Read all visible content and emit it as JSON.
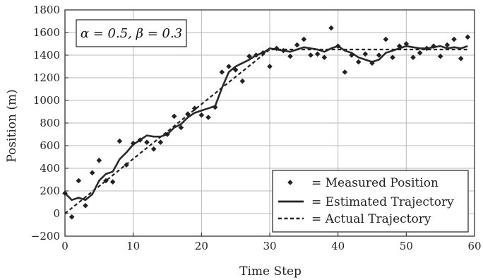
{
  "chart_data": {
    "type": "scatter",
    "title": "",
    "xlabel": "Time Step",
    "ylabel": "Position (m)",
    "xlim": [
      0,
      60
    ],
    "ylim": [
      -200,
      1800
    ],
    "xticks": [
      0,
      10,
      20,
      30,
      40,
      50,
      60
    ],
    "yticks": [
      -200,
      0,
      200,
      400,
      600,
      800,
      1000,
      1200,
      1400,
      1600,
      1800
    ],
    "xtick_labels": [
      "0",
      "10",
      "20",
      "30",
      "40",
      "50",
      "60"
    ],
    "ytick_labels": [
      "−200",
      "0",
      "200",
      "400",
      "600",
      "800",
      "1000",
      "1200",
      "1400",
      "1600",
      "1800"
    ],
    "grid": true,
    "legend_position": "bottom-right",
    "annotation": "α = 0.5, β = 0.3",
    "series": [
      {
        "name": "= Measured Position",
        "style": "markers",
        "marker": "diamond",
        "x": [
          0,
          1,
          2,
          3,
          4,
          5,
          6,
          7,
          8,
          9,
          10,
          11,
          12,
          13,
          14,
          15,
          16,
          17,
          18,
          19,
          20,
          21,
          22,
          23,
          24,
          25,
          26,
          27,
          28,
          29,
          30,
          31,
          32,
          33,
          34,
          35,
          36,
          37,
          38,
          39,
          40,
          41,
          42,
          43,
          44,
          45,
          46,
          47,
          48,
          49,
          50,
          51,
          52,
          53,
          54,
          55,
          56,
          57,
          58,
          59
        ],
        "y": [
          180,
          -30,
          290,
          70,
          360,
          470,
          290,
          280,
          640,
          430,
          620,
          650,
          630,
          570,
          630,
          700,
          860,
          760,
          880,
          930,
          870,
          850,
          940,
          1250,
          1300,
          1270,
          1170,
          1390,
          1400,
          1420,
          1300,
          1460,
          1440,
          1390,
          1490,
          1540,
          1400,
          1410,
          1380,
          1640,
          1480,
          1250,
          1400,
          1340,
          1410,
          1330,
          1400,
          1540,
          1380,
          1480,
          1500,
          1380,
          1420,
          1460,
          1480,
          1390,
          1490,
          1540,
          1370,
          1560
        ]
      },
      {
        "name": "= Estimated Trajectory",
        "style": "solid",
        "x": [
          0,
          1,
          2,
          3,
          4,
          5,
          6,
          7,
          8,
          9,
          10,
          11,
          12,
          13,
          14,
          15,
          16,
          17,
          18,
          19,
          20,
          21,
          22,
          23,
          24,
          25,
          26,
          27,
          28,
          29,
          30,
          31,
          32,
          33,
          34,
          35,
          36,
          37,
          38,
          39,
          40,
          41,
          42,
          43,
          44,
          45,
          46,
          47,
          48,
          49,
          50,
          51,
          52,
          53,
          54,
          55,
          56,
          57,
          58,
          59
        ],
        "y": [
          180,
          120,
          140,
          120,
          170,
          290,
          350,
          370,
          480,
          540,
          610,
          650,
          690,
          680,
          680,
          700,
          760,
          790,
          850,
          890,
          910,
          930,
          950,
          1110,
          1250,
          1300,
          1330,
          1360,
          1400,
          1420,
          1460,
          1450,
          1440,
          1430,
          1450,
          1470,
          1460,
          1450,
          1430,
          1460,
          1480,
          1440,
          1420,
          1380,
          1360,
          1340,
          1360,
          1420,
          1440,
          1460,
          1480,
          1470,
          1460,
          1460,
          1470,
          1480,
          1460,
          1470,
          1460,
          1480
        ]
      },
      {
        "name": "= Actual Trajectory",
        "style": "dashed",
        "x": [
          0,
          30,
          59
        ],
        "y": [
          0,
          1450,
          1450
        ]
      }
    ]
  }
}
